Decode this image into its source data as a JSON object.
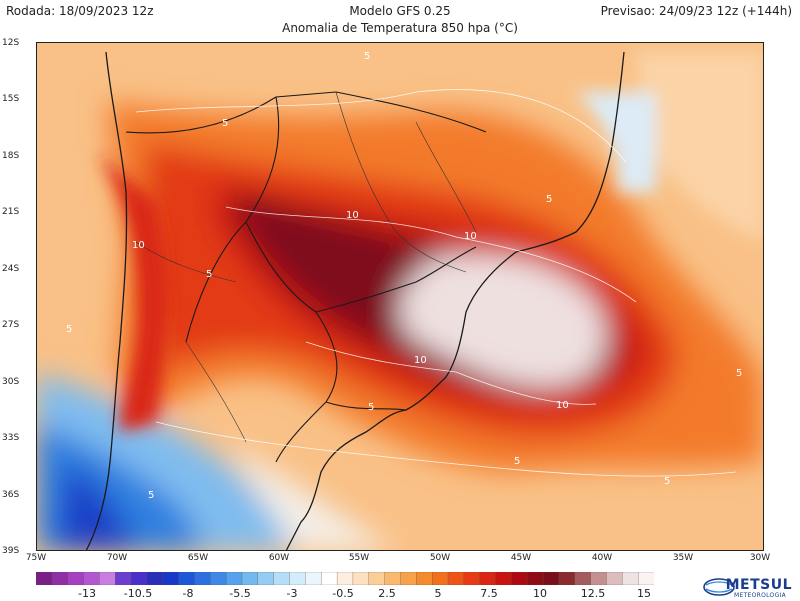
{
  "header": {
    "run": "Rodada: 18/09/2023 12z",
    "model": "Modelo GFS 0.25",
    "forecast": "Previsao: 24/09/23 12z (+144h)",
    "subtitle": "Anomalia de Temperatura 850 hpa (°C)"
  },
  "map": {
    "lat_labels": [
      "12S",
      "15S",
      "18S",
      "21S",
      "24S",
      "27S",
      "30S",
      "33S",
      "36S",
      "39S"
    ],
    "lon_labels": [
      "75W",
      "70W",
      "65W",
      "60W",
      "55W",
      "50W",
      "45W",
      "40W",
      "35W",
      "30W"
    ],
    "contour_labels": [
      "5",
      "5",
      "5",
      "5",
      "10",
      "10",
      "10",
      "5",
      "10",
      "5",
      "5",
      "5",
      "5",
      "10",
      "5"
    ]
  },
  "colorbar": {
    "labels": [
      "-13",
      "-10.5",
      "-8",
      "-5.5",
      "-3",
      "-0.5",
      "2.5",
      "5",
      "7.5",
      "10",
      "12.5",
      "15"
    ],
    "colors": [
      "#7a1f86",
      "#8f2fa3",
      "#a640c0",
      "#b456d0",
      "#c77ee0",
      "#6a3fd0",
      "#4a30c8",
      "#2a2fb8",
      "#1838c8",
      "#1f55d8",
      "#2d6fe0",
      "#3f88e6",
      "#56a2ec",
      "#74b8f0",
      "#96ccf4",
      "#b6ddf7",
      "#d4ecfa",
      "#eaf5fc",
      "#ffffff",
      "#fdeee0",
      "#fce0bf",
      "#fbce98",
      "#f9b86e",
      "#f7a14a",
      "#f58a2c",
      "#f26f1c",
      "#ee5317",
      "#e63a14",
      "#d92512",
      "#c8130f",
      "#ac0a10",
      "#8f0a14",
      "#7a0f1a",
      "#8a2b30",
      "#a55b5e",
      "#c48f90",
      "#dcbcbc",
      "#efe2e2",
      "#fbf2f2"
    ]
  },
  "logo": {
    "name": "METSUL",
    "tagline": "METEOROLOGIA"
  }
}
